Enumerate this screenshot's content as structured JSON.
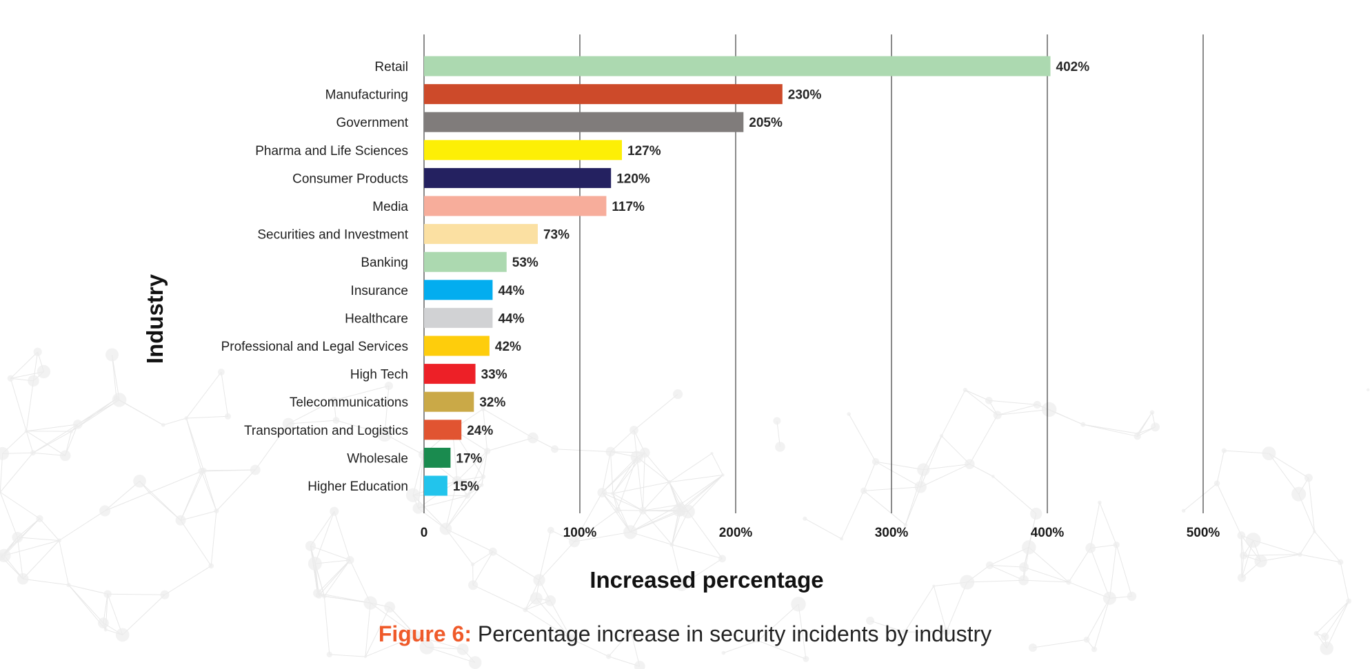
{
  "chart_data": {
    "type": "bar",
    "orientation": "horizontal",
    "categories": [
      "Retail",
      "Manufacturing",
      "Government",
      "Pharma and Life Sciences",
      "Consumer Products",
      "Media",
      "Securities and Investment",
      "Banking",
      "Insurance",
      "Healthcare",
      "Professional and Legal Services",
      "High Tech",
      "Telecommunications",
      "Transportation and Logistics",
      "Wholesale",
      "Higher Education"
    ],
    "values": [
      402,
      230,
      205,
      127,
      120,
      117,
      73,
      53,
      44,
      44,
      42,
      33,
      32,
      24,
      17,
      15
    ],
    "value_labels": [
      "402%",
      "230%",
      "205%",
      "127%",
      "120%",
      "117%",
      "73%",
      "53%",
      "44%",
      "44%",
      "42%",
      "33%",
      "32%",
      "24%",
      "17%",
      "15%"
    ],
    "colors": [
      "#acd9b0",
      "#cd4a2a",
      "#807c7b",
      "#fdef06",
      "#242160",
      "#f7ad9b",
      "#fbe0a2",
      "#acd9b0",
      "#03adef",
      "#d1d2d4",
      "#fecd0c",
      "#ed2027",
      "#caa947",
      "#e15431",
      "#1a8b4f",
      "#22c4ec"
    ],
    "xlim": [
      0,
      500
    ],
    "xticks": [
      0,
      100,
      200,
      300,
      400,
      500
    ],
    "xtick_labels": [
      "0",
      "100%",
      "200%",
      "300%",
      "400%",
      "500%"
    ],
    "xlabel": "Increased percentage",
    "ylabel": "Industry",
    "grid": "vertical"
  },
  "caption": {
    "prefix": "Figure 6:",
    "text": " Percentage increase in security incidents by industry",
    "prefix_color": "#ef5a2a"
  }
}
